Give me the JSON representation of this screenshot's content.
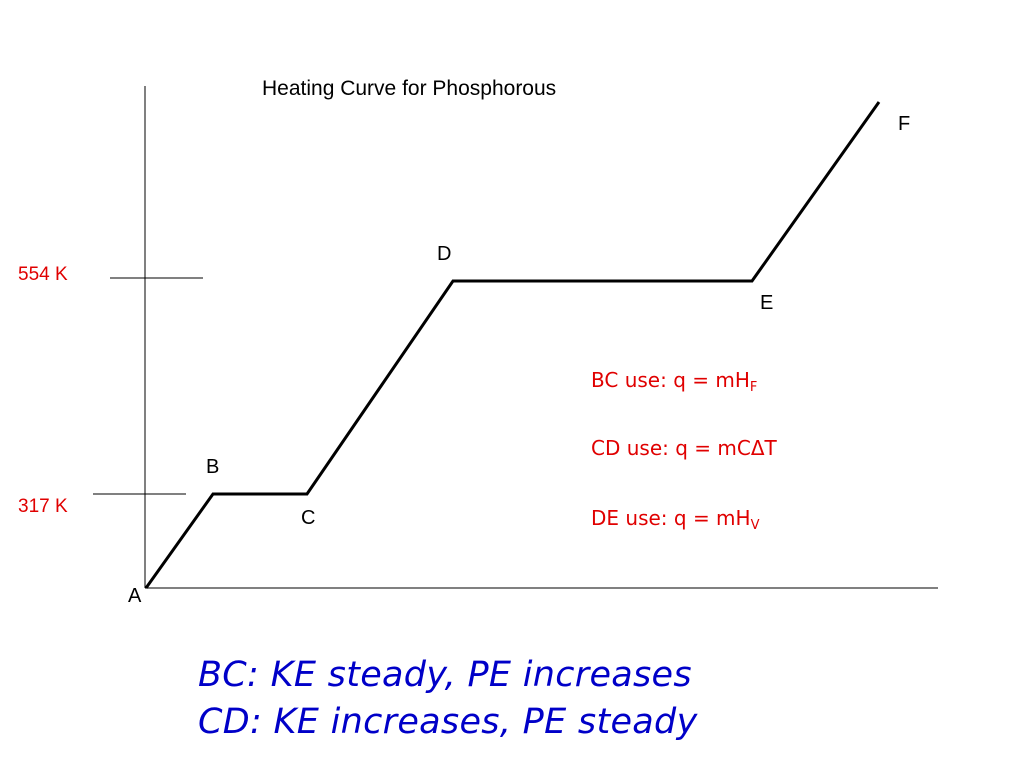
{
  "title": "Heating Curve for Phosphorous",
  "colors": {
    "axis": "#000000",
    "curve": "#000000",
    "temperature_labels": "#e00000",
    "equations": "#e00000",
    "notes": "#0000c8"
  },
  "temperatures": {
    "upper": "554 K",
    "lower": "317 K"
  },
  "points": {
    "A": "A",
    "B": "B",
    "C": "C",
    "D": "D",
    "E": "E",
    "F": "F"
  },
  "equations": [
    {
      "prefix": "BC use: q = mH",
      "subscript": "F"
    },
    {
      "prefix": "CD use: q = mCΔT",
      "subscript": ""
    },
    {
      "prefix": "DE use: q = mH",
      "subscript": "V"
    }
  ],
  "notes": [
    "BC:  KE steady, PE increases",
    "CD:  KE increases, PE steady"
  ]
}
